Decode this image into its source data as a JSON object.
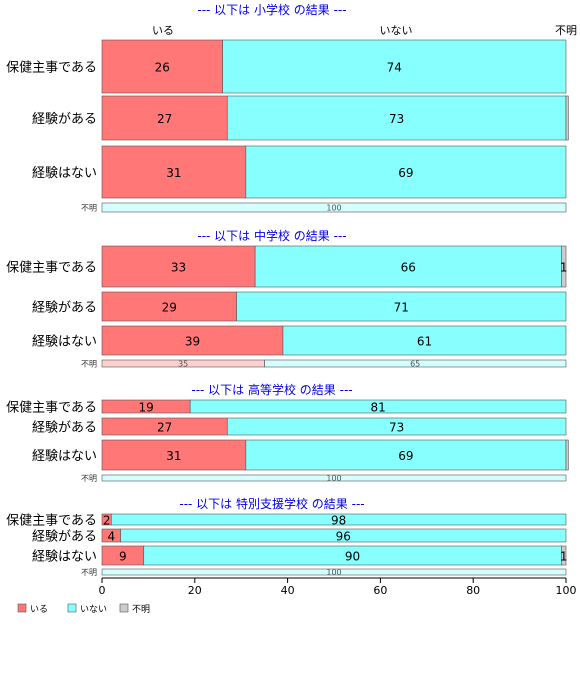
{
  "colors": {
    "iru": "#ff7777",
    "inai": "#88ffff",
    "fumei": "#cccccc",
    "title": "#0000ee"
  },
  "legend": {
    "items": [
      {
        "label": "いる",
        "color_key": "iru"
      },
      {
        "label": "いない",
        "color_key": "inai"
      },
      {
        "label": "不明",
        "color_key": "fumei"
      }
    ]
  },
  "column_headers": [
    "いる",
    "いない",
    "不明"
  ],
  "chart_data": {
    "type": "bar",
    "orientation": "horizontal",
    "stacked": true,
    "percent": true,
    "xlim": [
      0,
      100
    ],
    "xticks": [
      0,
      20,
      40,
      60,
      80,
      100
    ],
    "series_names": [
      "いる",
      "いない",
      "不明"
    ],
    "panels": [
      {
        "title": "--- 以下は 小学校 の結果 ---",
        "categories": [
          "保健主事である",
          "経験がある",
          "経験はない",
          "不明"
        ],
        "values": [
          [
            26,
            74,
            0
          ],
          [
            27,
            73,
            0.5
          ],
          [
            31,
            69,
            0
          ],
          [
            0,
            100,
            0
          ]
        ],
        "labels": [
          [
            "26",
            "74",
            ""
          ],
          [
            "27",
            "73",
            ""
          ],
          [
            "31",
            "69",
            ""
          ],
          [
            "",
            "100",
            ""
          ]
        ]
      },
      {
        "title": "--- 以下は 中学校 の結果 ---",
        "categories": [
          "保健主事である",
          "経験がある",
          "経験はない",
          "不明"
        ],
        "values": [
          [
            33,
            66,
            1
          ],
          [
            29,
            71,
            0
          ],
          [
            39,
            61,
            0
          ],
          [
            35,
            65,
            0
          ]
        ],
        "labels": [
          [
            "33",
            "66",
            "1"
          ],
          [
            "29",
            "71",
            ""
          ],
          [
            "39",
            "61",
            ""
          ],
          [
            "35",
            "65",
            ""
          ]
        ]
      },
      {
        "title": "--- 以下は 高等学校 の結果 ---",
        "categories": [
          "保健主事である",
          "経験がある",
          "経験はない",
          "不明"
        ],
        "values": [
          [
            19,
            81,
            0
          ],
          [
            27,
            73,
            0
          ],
          [
            31,
            69,
            0.5
          ],
          [
            0,
            100,
            0
          ]
        ],
        "labels": [
          [
            "19",
            "81",
            ""
          ],
          [
            "27",
            "73",
            ""
          ],
          [
            "31",
            "69",
            ""
          ],
          [
            "",
            "100",
            ""
          ]
        ]
      },
      {
        "title": "--- 以下は 特別支援学校 の結果 ---",
        "categories": [
          "保健主事である",
          "経験がある",
          "経験はない",
          "不明"
        ],
        "values": [
          [
            2,
            98,
            0
          ],
          [
            4,
            96,
            0
          ],
          [
            9,
            90,
            1
          ],
          [
            0,
            100,
            0
          ]
        ],
        "labels": [
          [
            "2",
            "98",
            ""
          ],
          [
            "4",
            "96",
            ""
          ],
          [
            "9",
            "90",
            "1"
          ],
          [
            "",
            "100",
            ""
          ]
        ]
      }
    ]
  }
}
